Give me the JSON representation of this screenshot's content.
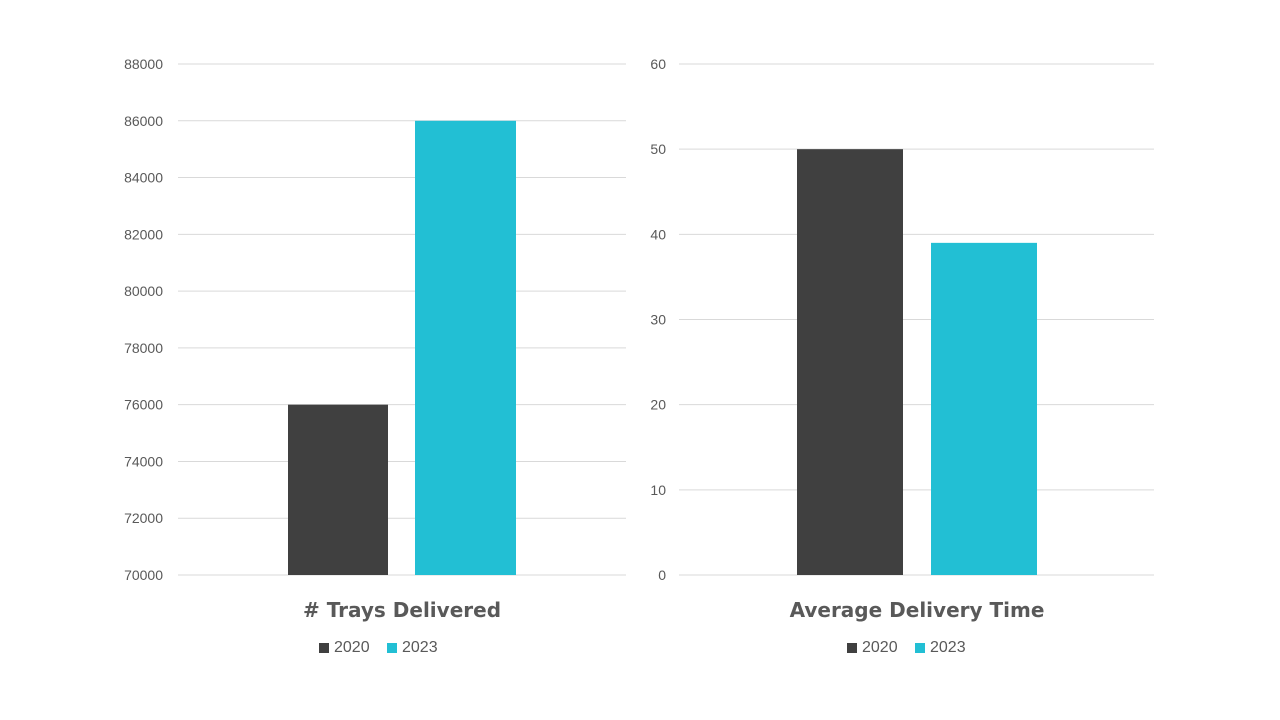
{
  "colors": {
    "2020": "#404040",
    "2023": "#22BFD4",
    "grid": "#d9d9d9",
    "text": "#595959"
  },
  "chart_data": [
    {
      "type": "bar",
      "title": "# Trays Delivered",
      "categories": [
        ""
      ],
      "series": [
        {
          "name": "2020",
          "values": [
            76000
          ]
        },
        {
          "name": "2023",
          "values": [
            86000
          ]
        }
      ],
      "ylim": [
        70000,
        88000
      ],
      "yticks": [
        70000,
        72000,
        74000,
        76000,
        78000,
        80000,
        82000,
        84000,
        86000,
        88000
      ],
      "grid": true,
      "legend": "bottom"
    },
    {
      "type": "bar",
      "title": "Average Delivery Time",
      "categories": [
        ""
      ],
      "series": [
        {
          "name": "2020",
          "values": [
            50
          ]
        },
        {
          "name": "2023",
          "values": [
            39
          ]
        }
      ],
      "ylim": [
        0,
        60
      ],
      "yticks": [
        0,
        10,
        20,
        30,
        40,
        50,
        60
      ],
      "grid": true,
      "legend": "bottom"
    }
  ]
}
